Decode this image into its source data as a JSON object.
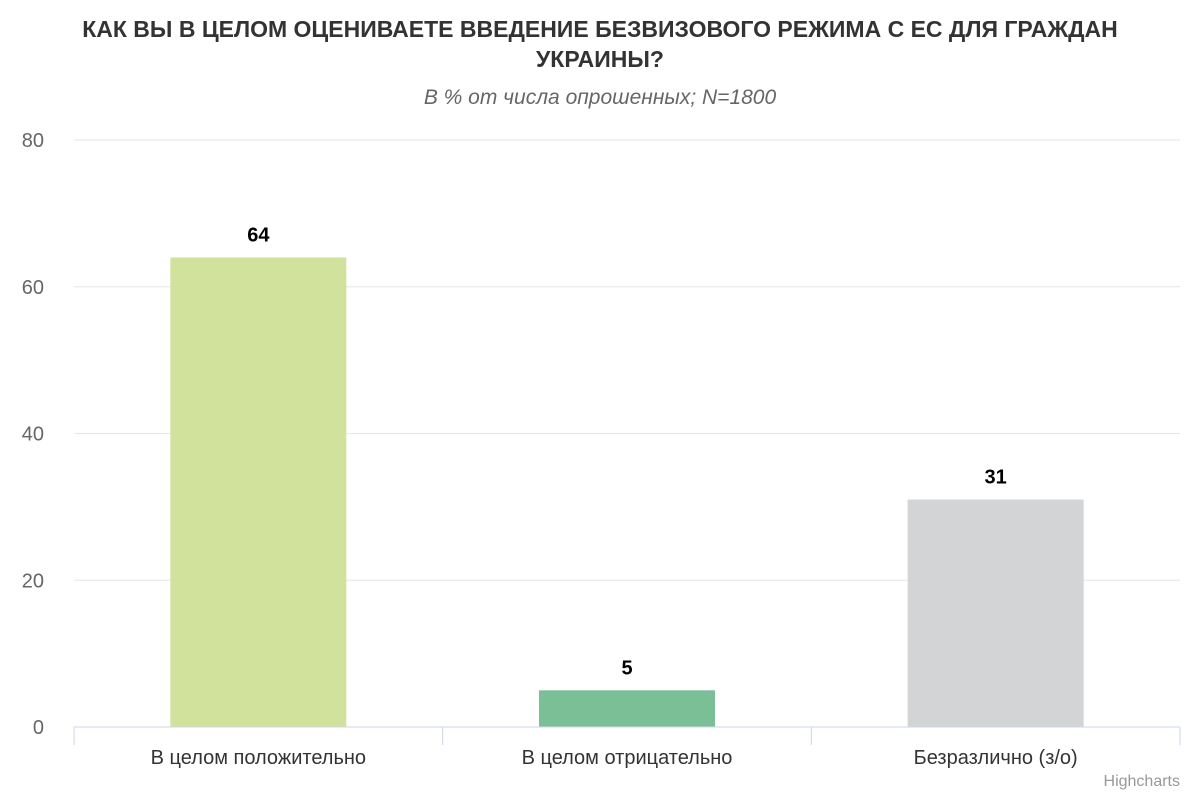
{
  "chart_data": {
    "type": "bar",
    "title": "КАК ВЫ В ЦЕЛОМ ОЦЕНИВАЕТЕ ВВЕДЕНИЕ БЕЗВИЗОВОГО РЕЖИМА С ЕС ДЛЯ ГРАЖДАН УКРАИНЫ?",
    "subtitle": "В % от числа опрошенных; N=1800",
    "categories": [
      "В целом положительно",
      "В целом отрицательно",
      "Безразлично (з/о)"
    ],
    "values": [
      64,
      5,
      31
    ],
    "colors": [
      "#d0e29b",
      "#7bbf97",
      "#d3d4d6"
    ],
    "xlabel": "",
    "ylabel": "",
    "ylim": [
      0,
      80
    ],
    "yticks": [
      0,
      20,
      40,
      60,
      80
    ],
    "grid": true,
    "legend": "none",
    "data_labels": true
  },
  "credits": "Highcharts"
}
